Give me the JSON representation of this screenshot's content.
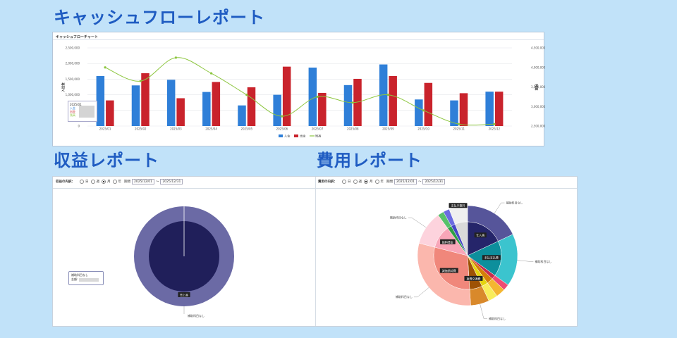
{
  "headings": {
    "cashflow": "キャッシュフローレポート",
    "revenue": "収益レポート",
    "cost": "費用レポート"
  },
  "cashflow_panel": {
    "title": "キャッシュフローチャート",
    "tooltip": {
      "date": "2025/01",
      "income": "入金",
      "expense": "出金",
      "balance": "残高"
    }
  },
  "chart_data": {
    "type": "bar",
    "categories": [
      "2025/01",
      "2025/02",
      "2025/03",
      "2025/04",
      "2025/05",
      "2025/06",
      "2025/07",
      "2025/08",
      "2025/09",
      "2025/10",
      "2025/11",
      "2025/12"
    ],
    "series": [
      {
        "name": "入金",
        "type": "bar",
        "axis": "left",
        "color": "#2f7fd8",
        "values": [
          1600000,
          1300000,
          1480000,
          1090000,
          660000,
          1000000,
          1870000,
          1310000,
          1970000,
          850000,
          820000,
          1100000
        ]
      },
      {
        "name": "出金",
        "type": "bar",
        "axis": "left",
        "color": "#c9232c",
        "values": [
          820000,
          1690000,
          890000,
          1410000,
          1240000,
          1900000,
          1060000,
          1510000,
          1600000,
          1380000,
          1050000,
          1100000
        ]
      },
      {
        "name": "残高",
        "type": "line",
        "axis": "right",
        "color": "#8dc63f",
        "values": [
          4000000,
          3650000,
          4250000,
          3850000,
          3300000,
          2750000,
          3250000,
          3100000,
          3300000,
          2900000,
          2550000,
          2550000
        ]
      }
    ],
    "ylabel_left": "入出金",
    "ylabel_right": "残高",
    "ylim_left": [
      0,
      2500000
    ],
    "ylim_right": [
      2500000,
      4500000
    ],
    "yticks_left": [
      "0",
      "500,000",
      "1,000,000",
      "1,500,000",
      "2,000,000",
      "2,500,000"
    ],
    "yticks_right": [
      "2,500,000",
      "3,000,000",
      "3,500,000",
      "4,000,000",
      "4,500,000"
    ],
    "legend": [
      "入金",
      "出金",
      "残高"
    ],
    "grid": true,
    "legend_position": "bottom"
  },
  "revenue_panel": {
    "filter_label": "収益の内訳：",
    "opt_day": "日",
    "opt_week": "週",
    "opt_month": "月",
    "opt_year": "年",
    "period_label": "期間",
    "date_from": "2025/12/01",
    "tilde": "〜",
    "date_to": "2025/12/31",
    "inner_label": "売上高",
    "outer_label": "補助科目なし",
    "tooltip_title": "補助科目なし",
    "tooltip_amount_label": "金額:",
    "inner_color": "#201f5a",
    "outer_color": "#6b6aa5"
  },
  "cost_panel": {
    "filter_label": "費用の内訳：",
    "opt_day": "日",
    "opt_week": "週",
    "opt_month": "月",
    "opt_year": "年",
    "period_label": "期間",
    "date_from": "2025/12/01",
    "tilde": "〜",
    "date_to": "2025/12/31",
    "slices": [
      {
        "label": "仕入高",
        "inner": "#25256a",
        "outer": "#56559a",
        "value": 18
      },
      {
        "label": "未払支払費",
        "inner": "#0d8f9c",
        "outer": "#3bc4ce",
        "value": 17
      },
      {
        "label": "",
        "inner": "#c92c4d",
        "outer": "#ee4c74",
        "value": 2
      },
      {
        "label": "",
        "inner": "#d57f08",
        "outer": "#f4b631",
        "value": 3
      },
      {
        "label": "",
        "inner": "#e5d40f",
        "outer": "#f8ed5a",
        "value": 3
      },
      {
        "label": "旅費交通費",
        "inner": "#9e5205",
        "outer": "#d9892b",
        "value": 6
      },
      {
        "label": "減価償却費",
        "inner": "#f0877b",
        "outer": "#fbb7ad",
        "value": 30
      },
      {
        "label": "給料賃金",
        "inner": "#f8a6b8",
        "outer": "#fdd3dd",
        "value": 11
      },
      {
        "label": "",
        "inner": "#2e9e45",
        "outer": "#57c16a",
        "value": 2
      },
      {
        "label": "",
        "inner": "#4646c6",
        "outer": "#6b6be0",
        "value": 2
      },
      {
        "label": "支払手数料",
        "inner": "#d9d9d9",
        "outer": "#f0f0f0",
        "value": 6
      }
    ],
    "callout": "補助科目なし"
  }
}
